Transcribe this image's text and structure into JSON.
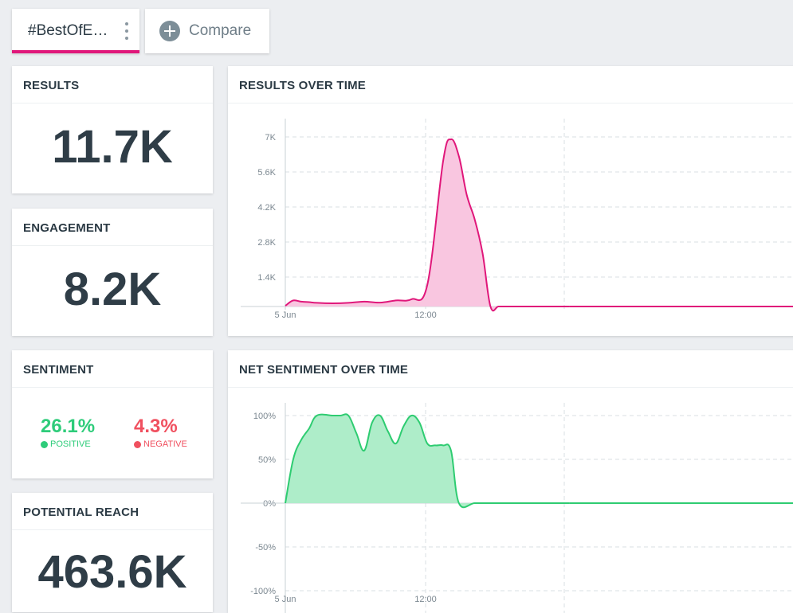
{
  "tabs": {
    "query_label": "#BestOfEi…",
    "compare_label": "Compare"
  },
  "cards": {
    "results": {
      "title": "RESULTS",
      "value": "11.7K"
    },
    "engagement": {
      "title": "ENGAGEMENT",
      "value": "8.2K"
    },
    "sentiment": {
      "title": "SENTIMENT",
      "positive_value": "26.1%",
      "positive_label": "POSITIVE",
      "negative_value": "4.3%",
      "negative_label": "NEGATIVE"
    },
    "reach": {
      "title": "POTENTIAL REACH",
      "value": "463.6K"
    }
  },
  "colors": {
    "accent": "#e0177a",
    "results_fill": "#f9c6e0",
    "sentiment_line": "#2ecc71",
    "sentiment_fill": "#aeedc9",
    "positive": "#2ecc7a",
    "negative": "#f0505f"
  },
  "chart_data": [
    {
      "type": "area",
      "title": "RESULTS OVER TIME",
      "x_tick_labels": [
        "5 Jun",
        "12:00"
      ],
      "y_tick_labels": [
        "7K",
        "5.6K",
        "4.2K",
        "2.8K",
        "1.4K"
      ],
      "ylim": [
        0,
        7000
      ],
      "grid": true,
      "series": [
        {
          "x": [
            0,
            0.5,
            1,
            1.5,
            2,
            3,
            4,
            5,
            6,
            7,
            8,
            9,
            10,
            10.5,
            11,
            11.5,
            12,
            12.5,
            13,
            13.5,
            14,
            15,
            16,
            17,
            18
          ],
          "values": [
            30,
            250,
            200,
            180,
            150,
            130,
            150,
            200,
            160,
            250,
            300,
            900,
            6000,
            6900,
            6200,
            4600,
            3600,
            2200,
            0,
            0,
            0,
            0,
            0,
            0,
            0
          ]
        }
      ]
    },
    {
      "type": "area",
      "title": "NET SENTIMENT OVER TIME",
      "x_tick_labels": [
        "5 Jun",
        "12:00"
      ],
      "y_tick_labels": [
        "100%",
        "50%",
        "0%",
        "-50%",
        "-100%"
      ],
      "ylim": [
        -100,
        100
      ],
      "grid": true,
      "series": [
        {
          "x": [
            0,
            0.5,
            1,
            1.5,
            2,
            3,
            3.5,
            4,
            4.5,
            5,
            5.5,
            6,
            6.5,
            7,
            7.5,
            8,
            8.5,
            9,
            9.5,
            10,
            10.5,
            11,
            12,
            13,
            18
          ],
          "values": [
            0,
            50,
            72,
            85,
            100,
            100,
            100,
            100,
            80,
            60,
            92,
            100,
            82,
            68,
            88,
            100,
            92,
            68,
            66,
            66,
            60,
            0,
            0,
            0,
            0
          ]
        }
      ]
    }
  ]
}
